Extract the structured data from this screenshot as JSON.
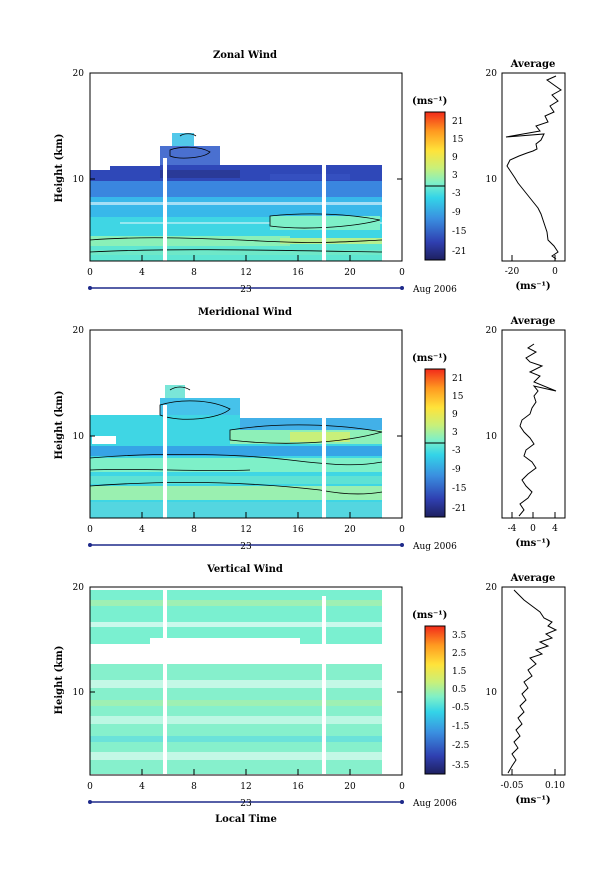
{
  "figure": {
    "xlabel": "Local Time"
  },
  "chart_data": [
    {
      "type": "heatmap",
      "title": "Zonal Wind",
      "ylabel": "Height (km)",
      "xlim": [
        0,
        24
      ],
      "ylim": [
        1.5,
        20
      ],
      "xticks": [
        "0",
        "4",
        "8",
        "12",
        "16",
        "20",
        "0"
      ],
      "yticks": [
        "10",
        "20"
      ],
      "day_label": "23",
      "date_label": "Aug 2006",
      "colorbar": {
        "unit": "(ms⁻¹)",
        "ticks": [
          "21",
          "15",
          "9",
          "3",
          "-3",
          "-9",
          "-15",
          "-21"
        ],
        "range": [
          -24,
          24
        ],
        "marked_level": 0
      },
      "average_panel": {
        "title": "Average",
        "xticks": [
          "-20",
          "0"
        ],
        "xlim": [
          -25,
          3
        ],
        "unit": "(ms⁻¹)",
        "yticks": [
          "10",
          "20"
        ]
      }
    },
    {
      "type": "heatmap",
      "title": "Meridional Wind",
      "ylabel": "Height (km)",
      "xlim": [
        0,
        24
      ],
      "ylim": [
        1.5,
        20
      ],
      "xticks": [
        "0",
        "4",
        "8",
        "12",
        "16",
        "20",
        "0"
      ],
      "yticks": [
        "10",
        "20"
      ],
      "day_label": "23",
      "date_label": "Aug 2006",
      "colorbar": {
        "unit": "(ms⁻¹)",
        "ticks": [
          "21",
          "15",
          "9",
          "3",
          "-3",
          "-9",
          "-15",
          "-21"
        ],
        "range": [
          -24,
          24
        ],
        "marked_level": 0
      },
      "average_panel": {
        "title": "Average",
        "xticks": [
          "-4",
          "0",
          "4"
        ],
        "xlim": [
          -5.5,
          5.5
        ],
        "unit": "(ms⁻¹)",
        "yticks": [
          "10",
          "20"
        ]
      }
    },
    {
      "type": "heatmap",
      "title": "Vertical Wind",
      "ylabel": "Height (km)",
      "xlim": [
        0,
        24
      ],
      "ylim": [
        1.5,
        20
      ],
      "xticks": [
        "0",
        "4",
        "8",
        "12",
        "16",
        "20",
        "0"
      ],
      "yticks": [
        "10",
        "20"
      ],
      "day_label": "23",
      "date_label": "Aug 2006",
      "colorbar": {
        "unit": "(ms⁻¹)",
        "ticks": [
          "3.5",
          "2.5",
          "1.5",
          "0.5",
          "-0.5",
          "-1.5",
          "-2.5",
          "-3.5"
        ],
        "range": [
          -4,
          4
        ]
      },
      "average_panel": {
        "title": "Average",
        "xticks": [
          "-0.05",
          "0.10"
        ],
        "xlim": [
          -0.08,
          0.14
        ],
        "unit": "(ms⁻¹)",
        "yticks": [
          "10",
          "20"
        ]
      }
    }
  ]
}
